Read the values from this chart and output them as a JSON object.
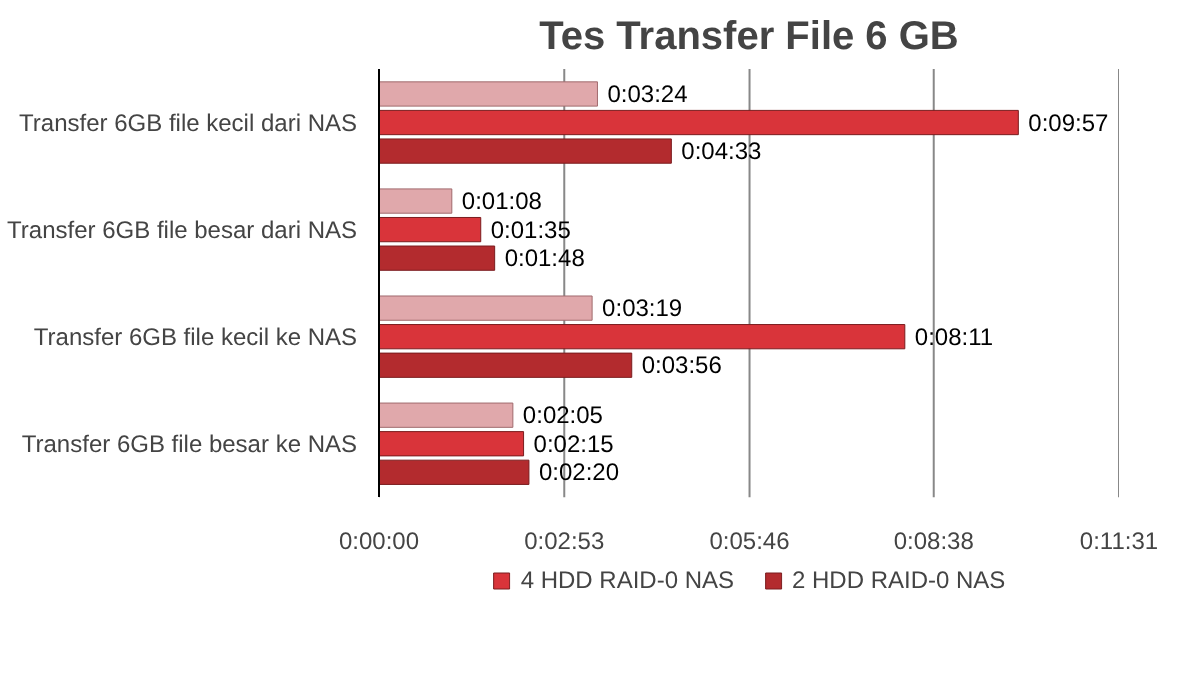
{
  "chart_data": {
    "type": "bar",
    "orientation": "horizontal",
    "title": "Tes Transfer File 6 GB",
    "categories": [
      "Transfer 6GB file kecil dari NAS",
      "Transfer 6GB file besar dari NAS",
      "Transfer 6GB file kecil ke NAS",
      "Transfer 6GB file besar ke NAS"
    ],
    "series": [
      {
        "color": "#e0a8ab",
        "values": [
          204,
          68,
          199,
          125
        ],
        "value_labels": [
          "0:03:24",
          "0:01:08",
          "0:03:19",
          "0:02:05"
        ]
      },
      {
        "name": "4 HDD RAID-0 NAS",
        "color": "#d9343a",
        "values": [
          597,
          95,
          491,
          135
        ],
        "value_labels": [
          "0:09:57",
          "0:01:35",
          "0:08:11",
          "0:02:15"
        ]
      },
      {
        "name": "2 HDD RAID-0 NAS",
        "color": "#b32b2e",
        "values": [
          273,
          108,
          236,
          140
        ],
        "value_labels": [
          "0:04:33",
          "0:01:48",
          "0:03:56",
          "0:02:20"
        ]
      }
    ],
    "xlim": [
      0,
      691
    ],
    "xticks": [
      {
        "value": 0,
        "label": "0:00:00"
      },
      {
        "value": 173,
        "label": "0:02:53"
      },
      {
        "value": 346,
        "label": "0:05:46"
      },
      {
        "value": 518,
        "label": "0:08:38"
      },
      {
        "value": 691,
        "label": "0:11:31"
      }
    ],
    "grid": "x",
    "legend": "bottom"
  }
}
